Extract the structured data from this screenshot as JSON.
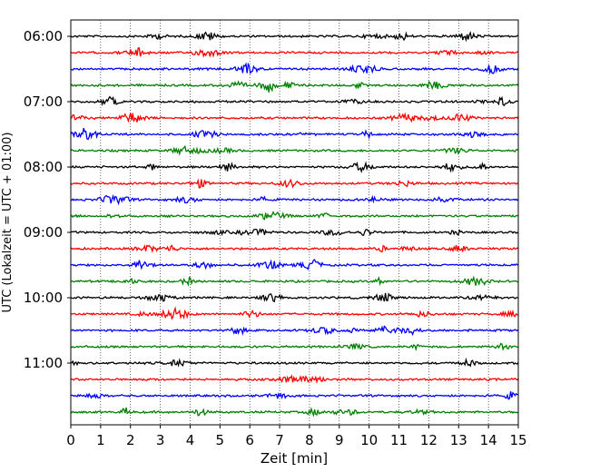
{
  "chart_data": {
    "type": "line",
    "title": "",
    "xlabel": "Zeit  [min]",
    "ylabel": "UTC (Lokalzeit = UTC + 01:00)",
    "xlim": [
      0,
      15
    ],
    "x_ticks": [
      "0",
      "1",
      "2",
      "3",
      "4",
      "5",
      "6",
      "7",
      "8",
      "9",
      "10",
      "11",
      "12",
      "13",
      "14",
      "15"
    ],
    "y_ticks": [
      "06:00",
      "07:00",
      "08:00",
      "09:00",
      "10:00",
      "11:00"
    ],
    "grid": "vertical dotted",
    "trace_interval_minutes": 15,
    "trace_colors": [
      "#000000",
      "#ff0000",
      "#0000ff",
      "#008000"
    ],
    "series": [
      {
        "start": "06:00"
      },
      {
        "start": "06:15"
      },
      {
        "start": "06:30"
      },
      {
        "start": "06:45"
      },
      {
        "start": "07:00"
      },
      {
        "start": "07:15"
      },
      {
        "start": "07:30"
      },
      {
        "start": "07:45"
      },
      {
        "start": "08:00"
      },
      {
        "start": "08:15"
      },
      {
        "start": "08:30"
      },
      {
        "start": "08:45"
      },
      {
        "start": "09:00"
      },
      {
        "start": "09:15"
      },
      {
        "start": "09:30"
      },
      {
        "start": "09:45"
      },
      {
        "start": "10:00"
      },
      {
        "start": "10:15"
      },
      {
        "start": "10:30"
      },
      {
        "start": "10:45"
      },
      {
        "start": "11:00"
      },
      {
        "start": "11:15"
      },
      {
        "start": "11:30"
      },
      {
        "start": "11:45"
      }
    ]
  }
}
